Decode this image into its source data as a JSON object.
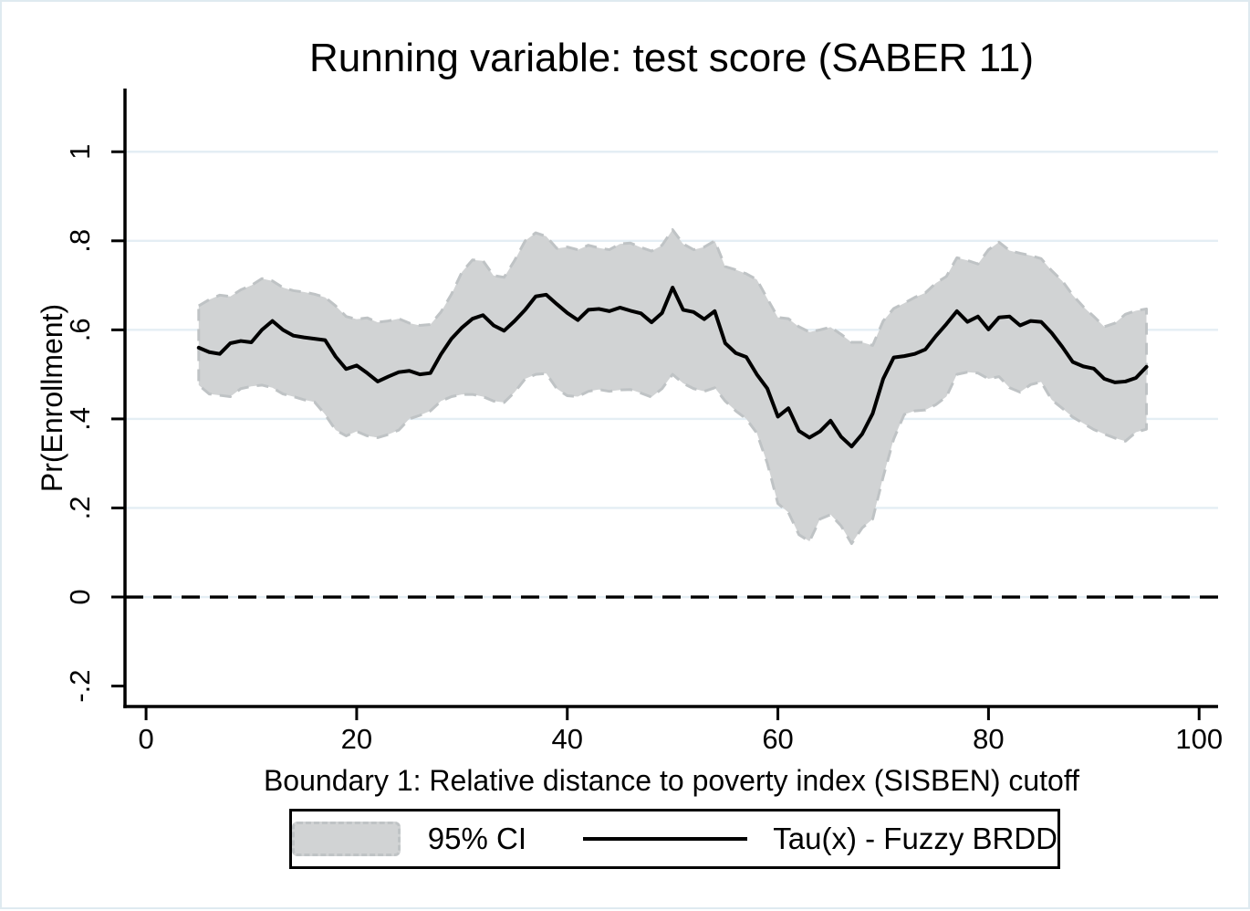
{
  "figure": {
    "title": "Running variable: test score (SABER 11)",
    "x_axis_label": "Boundary 1: Relative distance to poverty index (SISBEN) cutoff",
    "y_axis_label": "Pr(Enrollment)"
  },
  "legend": {
    "ci_label": "95% CI",
    "line_label": "Tau(x) - Fuzzy BRDD"
  },
  "colors": {
    "band_fill": "#d1d3d4",
    "band_edge": "#bfc3c5",
    "tau_line": "#000000",
    "gridline": "#e4eef4",
    "axis": "#000000",
    "zero_line": "#000000",
    "frame_border": "#dfeaf0"
  },
  "chart_data": {
    "type": "line",
    "subtype": "line-with-confidence-area",
    "title": "Running variable: test score (SABER 11)",
    "xlabel": "Boundary 1: Relative distance to poverty index (SISBEN) cutoff",
    "ylabel": "Pr(Enrollment)",
    "xlim": [
      -2,
      101.8
    ],
    "ylim": [
      -0.246,
      1.142
    ],
    "grid": "horizontal-only",
    "legend_position": "bottom-center",
    "gridline_values": [
      0,
      0.2,
      0.4,
      0.6,
      0.8,
      1
    ],
    "reference_line_y": 0,
    "xticks": [
      {
        "value": 0,
        "label": "0"
      },
      {
        "value": 20,
        "label": "20"
      },
      {
        "value": 40,
        "label": "40"
      },
      {
        "value": 60,
        "label": "60"
      },
      {
        "value": 80,
        "label": "80"
      },
      {
        "value": 100,
        "label": "100"
      }
    ],
    "yticks": [
      {
        "value": -0.2,
        "label": "-.2"
      },
      {
        "value": 0,
        "label": "0"
      },
      {
        "value": 0.2,
        "label": ".2"
      },
      {
        "value": 0.4,
        "label": ".4"
      },
      {
        "value": 0.6,
        "label": ".6"
      },
      {
        "value": 0.8,
        "label": ".8"
      },
      {
        "value": 1,
        "label": "1"
      }
    ],
    "x": [
      5,
      6,
      7,
      8,
      9,
      10,
      11,
      12,
      13,
      14,
      15,
      16,
      17,
      18,
      19,
      20,
      21,
      22,
      23,
      24,
      25,
      26,
      27,
      28,
      29,
      30,
      31,
      32,
      33,
      34,
      35,
      36,
      37,
      38,
      39,
      40,
      41,
      42,
      43,
      44,
      45,
      46,
      47,
      48,
      49,
      50,
      51,
      52,
      53,
      54,
      55,
      56,
      57,
      58,
      59,
      60,
      61,
      62,
      63,
      64,
      65,
      66,
      67,
      68,
      69,
      70,
      71,
      72,
      73,
      74,
      75,
      76,
      77,
      78,
      79,
      80,
      81,
      82,
      83,
      84,
      85,
      86,
      87,
      88,
      89,
      90,
      91,
      92,
      93,
      94,
      95
    ],
    "series": [
      {
        "name": "Tau(x) - Fuzzy BRDD",
        "values": [
          0.56,
          0.55,
          0.546,
          0.57,
          0.575,
          0.572,
          0.6,
          0.62,
          0.6,
          0.587,
          0.583,
          0.58,
          0.577,
          0.54,
          0.512,
          0.52,
          0.503,
          0.484,
          0.495,
          0.505,
          0.508,
          0.5,
          0.503,
          0.545,
          0.58,
          0.605,
          0.625,
          0.633,
          0.61,
          0.598,
          0.62,
          0.645,
          0.675,
          0.679,
          0.658,
          0.638,
          0.622,
          0.645,
          0.647,
          0.642,
          0.65,
          0.643,
          0.637,
          0.617,
          0.638,
          0.695,
          0.645,
          0.64,
          0.624,
          0.642,
          0.57,
          0.548,
          0.539,
          0.5,
          0.468,
          0.405,
          0.424,
          0.373,
          0.358,
          0.372,
          0.396,
          0.36,
          0.338,
          0.366,
          0.412,
          0.49,
          0.538,
          0.541,
          0.546,
          0.556,
          0.586,
          0.613,
          0.642,
          0.618,
          0.63,
          0.601,
          0.628,
          0.63,
          0.61,
          0.62,
          0.618,
          0.593,
          0.562,
          0.528,
          0.518,
          0.513,
          0.49,
          0.482,
          0.484,
          0.492,
          0.517
        ]
      },
      {
        "name": "95% CI upper",
        "values": [
          0.654,
          0.668,
          0.678,
          0.675,
          0.69,
          0.7,
          0.715,
          0.71,
          0.695,
          0.688,
          0.685,
          0.68,
          0.673,
          0.654,
          0.63,
          0.624,
          0.627,
          0.617,
          0.62,
          0.625,
          0.615,
          0.61,
          0.612,
          0.64,
          0.68,
          0.73,
          0.757,
          0.755,
          0.722,
          0.718,
          0.756,
          0.8,
          0.818,
          0.81,
          0.783,
          0.786,
          0.78,
          0.79,
          0.784,
          0.78,
          0.793,
          0.795,
          0.785,
          0.777,
          0.79,
          0.825,
          0.793,
          0.78,
          0.786,
          0.8,
          0.742,
          0.735,
          0.726,
          0.713,
          0.67,
          0.628,
          0.625,
          0.607,
          0.595,
          0.6,
          0.606,
          0.59,
          0.572,
          0.572,
          0.565,
          0.62,
          0.648,
          0.66,
          0.673,
          0.683,
          0.705,
          0.72,
          0.762,
          0.756,
          0.748,
          0.78,
          0.797,
          0.778,
          0.772,
          0.767,
          0.76,
          0.733,
          0.71,
          0.678,
          0.652,
          0.63,
          0.607,
          0.615,
          0.635,
          0.643,
          0.647
        ]
      },
      {
        "name": "95% CI lower",
        "values": [
          0.476,
          0.456,
          0.453,
          0.45,
          0.468,
          0.473,
          0.476,
          0.47,
          0.456,
          0.45,
          0.443,
          0.438,
          0.41,
          0.375,
          0.362,
          0.372,
          0.362,
          0.358,
          0.365,
          0.375,
          0.4,
          0.408,
          0.418,
          0.44,
          0.45,
          0.455,
          0.455,
          0.45,
          0.44,
          0.437,
          0.46,
          0.49,
          0.5,
          0.502,
          0.468,
          0.452,
          0.45,
          0.462,
          0.466,
          0.462,
          0.465,
          0.466,
          0.458,
          0.449,
          0.468,
          0.5,
          0.48,
          0.468,
          0.462,
          0.47,
          0.44,
          0.418,
          0.4,
          0.368,
          0.3,
          0.21,
          0.19,
          0.14,
          0.125,
          0.175,
          0.185,
          0.16,
          0.12,
          0.155,
          0.175,
          0.27,
          0.355,
          0.41,
          0.418,
          0.42,
          0.432,
          0.45,
          0.5,
          0.505,
          0.503,
          0.49,
          0.495,
          0.47,
          0.46,
          0.477,
          0.483,
          0.443,
          0.424,
          0.404,
          0.39,
          0.376,
          0.366,
          0.357,
          0.35,
          0.37,
          0.377
        ]
      }
    ]
  }
}
